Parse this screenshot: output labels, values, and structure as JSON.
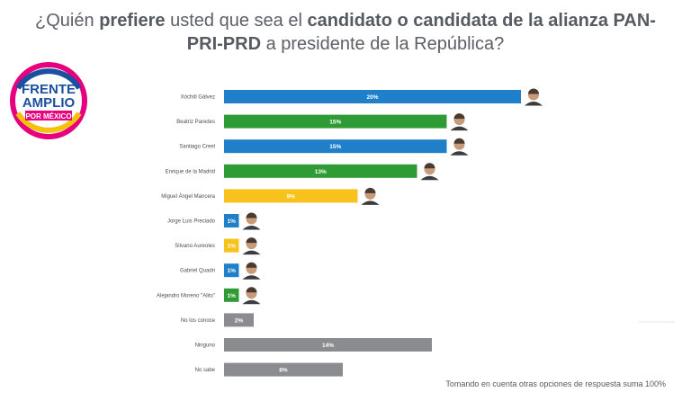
{
  "title": {
    "p1": "¿Quién ",
    "b1": "prefiere",
    "p2": " usted que sea el ",
    "b2": "candidato o candidata de la alianza PAN-",
    "b3": "PRI-PRD",
    "p3": " a presidente de la República?"
  },
  "logo": {
    "line1": "FRENTE",
    "line2": "AMPLIO",
    "line3": "POR MÉXICO"
  },
  "footer_note": "Tomando en cuenta otras opciones de respuesta suma 100%",
  "colors": {
    "blue": "#1f7fc9",
    "green": "#2e9b35",
    "yellow": "#f7c21b",
    "gray": "#8a8c8f"
  },
  "chart_data": {
    "type": "bar",
    "orientation": "horizontal",
    "categories": [
      "Xóchitl Gálvez",
      "Beatriz Paredes",
      "Santiago Creel",
      "Enrique de la Madrid",
      "Miguel Ángel Mancera",
      "Jorge Luis Preciado",
      "Silvano Aureoles",
      "Gabriel Quadri",
      "Alejandro Moreno \"Alito\"",
      "No los conoce",
      "Ninguno",
      "No sabe"
    ],
    "values": [
      20,
      15,
      15,
      13,
      9,
      1,
      1,
      1,
      1,
      2,
      14,
      8
    ],
    "labels": [
      "20%",
      "15%",
      "15%",
      "13%",
      "9%",
      "1%",
      "1%",
      "1%",
      "1%",
      "2%",
      "14%",
      "8%"
    ],
    "bar_colors": [
      "blue",
      "green",
      "blue",
      "green",
      "yellow",
      "blue",
      "yellow",
      "blue",
      "green",
      "gray",
      "gray",
      "gray"
    ],
    "has_photo": [
      true,
      true,
      true,
      true,
      true,
      true,
      true,
      true,
      true,
      false,
      false,
      false
    ],
    "xlim": [
      0,
      20
    ],
    "grid": false
  }
}
